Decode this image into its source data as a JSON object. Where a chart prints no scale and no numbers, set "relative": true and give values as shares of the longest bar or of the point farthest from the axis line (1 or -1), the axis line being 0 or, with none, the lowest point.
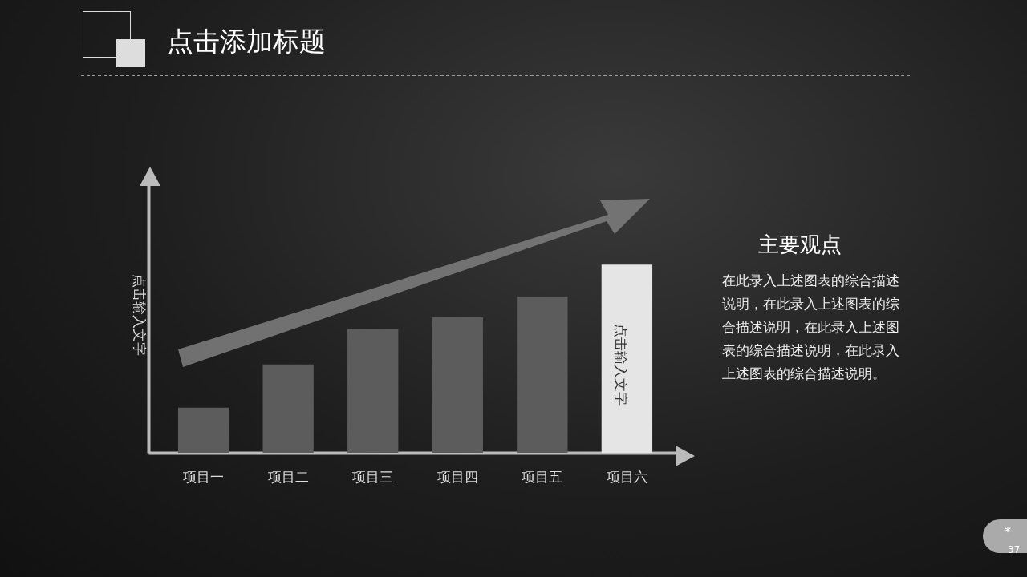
{
  "chart_data": {
    "type": "bar",
    "title": "点击添加标题",
    "ylabel": "点击输入文字",
    "categories": [
      "项目一",
      "项目二",
      "项目三",
      "项目四",
      "项目五",
      "项目六"
    ],
    "values": [
      0.24,
      0.47,
      0.66,
      0.72,
      0.83,
      1
    ],
    "colors": [
      "#5c5c5c",
      "#5c5c5c",
      "#5c5c5c",
      "#5c5c5c",
      "#5c5c5c",
      "#e5e5e5"
    ],
    "relative": true,
    "annotations": [
      "点击输入文字",
      "主要观点",
      "在此录入上述图表的综合描述说明，在此录入上述图表的综合描述说明，在此录入上述图表的综合描述说明，在此录入上述图表的综合描述说明。",
      "*",
      "37"
    ]
  }
}
